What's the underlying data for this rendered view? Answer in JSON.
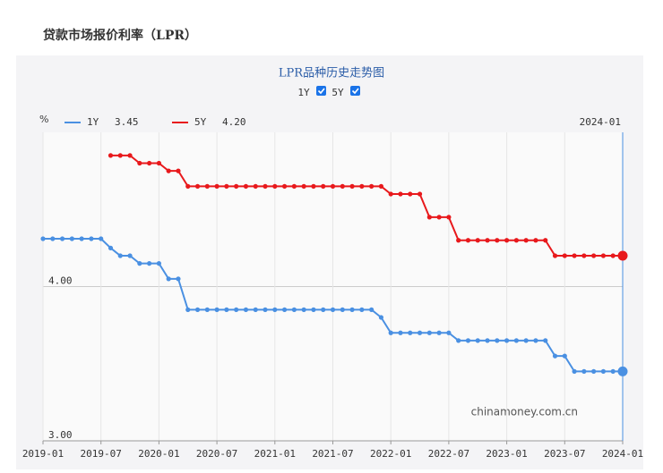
{
  "page_title": "贷款市场报价利率（LPR）",
  "chart_data": {
    "type": "line",
    "title": "LPR品种历史走势图",
    "toggles": [
      "1Y",
      "5Y"
    ],
    "y_unit": "%",
    "watermark": "chinamoney.com.cn",
    "tooltip": {
      "x": "2024-01",
      "labels": [
        "3.45",
        "4.20"
      ]
    },
    "categories": [
      "2019-01",
      null,
      null,
      null,
      null,
      null,
      "2019-07",
      null,
      null,
      null,
      null,
      null,
      "2020-01",
      null,
      null,
      null,
      null,
      null,
      "2020-07",
      null,
      null,
      null,
      null,
      null,
      "2021-01",
      null,
      null,
      null,
      null,
      null,
      "2021-07",
      null,
      null,
      null,
      null,
      null,
      "2022-01",
      null,
      null,
      null,
      null,
      null,
      "2022-07",
      null,
      null,
      null,
      null,
      null,
      "2023-01",
      null,
      null,
      null,
      null,
      null,
      "2023-07",
      null,
      null,
      null,
      null,
      null,
      "2024-01"
    ],
    "series": [
      {
        "name": "1Y",
        "color": "#4a90e2",
        "values": [
          4.31,
          4.31,
          4.31,
          4.31,
          4.31,
          4.31,
          4.31,
          4.25,
          4.2,
          4.2,
          4.15,
          4.15,
          4.15,
          4.05,
          4.05,
          3.85,
          3.85,
          3.85,
          3.85,
          3.85,
          3.85,
          3.85,
          3.85,
          3.85,
          3.85,
          3.85,
          3.85,
          3.85,
          3.85,
          3.85,
          3.85,
          3.85,
          3.85,
          3.85,
          3.85,
          3.8,
          3.7,
          3.7,
          3.7,
          3.7,
          3.7,
          3.7,
          3.7,
          3.65,
          3.65,
          3.65,
          3.65,
          3.65,
          3.65,
          3.65,
          3.65,
          3.65,
          3.65,
          3.55,
          3.55,
          3.45,
          3.45,
          3.45,
          3.45,
          3.45,
          3.45
        ]
      },
      {
        "name": "5Y",
        "color": "#e8191c",
        "values": [
          null,
          null,
          null,
          null,
          null,
          null,
          null,
          4.85,
          4.85,
          4.85,
          4.8,
          4.8,
          4.8,
          4.75,
          4.75,
          4.65,
          4.65,
          4.65,
          4.65,
          4.65,
          4.65,
          4.65,
          4.65,
          4.65,
          4.65,
          4.65,
          4.65,
          4.65,
          4.65,
          4.65,
          4.65,
          4.65,
          4.65,
          4.65,
          4.65,
          4.65,
          4.6,
          4.6,
          4.6,
          4.6,
          4.45,
          4.45,
          4.45,
          4.3,
          4.3,
          4.3,
          4.3,
          4.3,
          4.3,
          4.3,
          4.3,
          4.3,
          4.3,
          4.2,
          4.2,
          4.2,
          4.2,
          4.2,
          4.2,
          4.2,
          4.2
        ]
      }
    ],
    "ylim": [
      3,
      5
    ],
    "yticks": [
      {
        "value": 3,
        "label": "3.00"
      },
      {
        "value": 4,
        "label": "4.00"
      }
    ],
    "grid": true
  }
}
